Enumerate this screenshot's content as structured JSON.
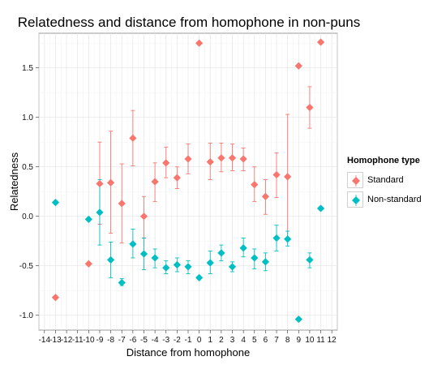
{
  "chart_data": {
    "type": "scatter",
    "title": "Relatedness and distance from homophone in non-puns",
    "xlabel": "Distance from homophone",
    "ylabel": "Relatedness",
    "xlim": [
      -14,
      12
    ],
    "ylim": [
      -1.15,
      1.85
    ],
    "x_ticks": [
      -14,
      -13,
      -12,
      -11,
      -10,
      -9,
      -8,
      -7,
      -6,
      -5,
      -4,
      -3,
      -2,
      -1,
      0,
      1,
      2,
      3,
      4,
      5,
      6,
      7,
      8,
      9,
      10,
      11,
      12
    ],
    "y_ticks": [
      -1.0,
      -0.5,
      0.0,
      0.5,
      1.0,
      1.5
    ],
    "y_tick_labels": [
      "-1.0",
      "-0.5",
      "0.0",
      "0.5",
      "1.0",
      "1.5"
    ],
    "grid": true,
    "legend_title": "Homophone type",
    "legend_position": "right",
    "series": [
      {
        "name": "Standard",
        "color": "#F8766D",
        "points": [
          {
            "x": -13,
            "y": -0.82
          },
          {
            "x": -10,
            "y": -0.48
          },
          {
            "x": -9,
            "y": 0.33,
            "lo": -0.08,
            "hi": 0.75
          },
          {
            "x": -8,
            "y": 0.34,
            "lo": -0.17,
            "hi": 0.86
          },
          {
            "x": -7,
            "y": 0.13,
            "lo": -0.27,
            "hi": 0.53
          },
          {
            "x": -6,
            "y": 0.79,
            "lo": 0.51,
            "hi": 1.07
          },
          {
            "x": -5,
            "y": 0.0,
            "lo": -0.22,
            "hi": 0.2
          },
          {
            "x": -4,
            "y": 0.35,
            "lo": 0.15,
            "hi": 0.54
          },
          {
            "x": -3,
            "y": 0.54,
            "lo": 0.39,
            "hi": 0.7
          },
          {
            "x": -2,
            "y": 0.39,
            "lo": 0.28,
            "hi": 0.5
          },
          {
            "x": -1,
            "y": 0.58,
            "lo": 0.43,
            "hi": 0.73
          },
          {
            "x": 0,
            "y": 1.75
          },
          {
            "x": 1,
            "y": 0.55,
            "lo": 0.37,
            "hi": 0.74
          },
          {
            "x": 2,
            "y": 0.59,
            "lo": 0.45,
            "hi": 0.74
          },
          {
            "x": 3,
            "y": 0.59,
            "lo": 0.46,
            "hi": 0.73
          },
          {
            "x": 4,
            "y": 0.58,
            "lo": 0.46,
            "hi": 0.69
          },
          {
            "x": 5,
            "y": 0.32,
            "lo": 0.15,
            "hi": 0.5
          },
          {
            "x": 6,
            "y": 0.2,
            "lo": 0.02,
            "hi": 0.37
          },
          {
            "x": 7,
            "y": 0.42,
            "lo": 0.19,
            "hi": 0.64
          },
          {
            "x": 8,
            "y": 0.4,
            "lo": -0.22,
            "hi": 1.03
          },
          {
            "x": 9,
            "y": 1.52
          },
          {
            "x": 10,
            "y": 1.1,
            "lo": 0.89,
            "hi": 1.31
          },
          {
            "x": 11,
            "y": 1.76
          }
        ]
      },
      {
        "name": "Non-standard",
        "color": "#00BFC4",
        "points": [
          {
            "x": -13,
            "y": 0.14
          },
          {
            "x": -10,
            "y": -0.03
          },
          {
            "x": -9,
            "y": 0.04,
            "lo": -0.29,
            "hi": 0.37
          },
          {
            "x": -8,
            "y": -0.44,
            "lo": -0.62,
            "hi": -0.26
          },
          {
            "x": -7,
            "y": -0.67,
            "lo": -0.7,
            "hi": -0.63
          },
          {
            "x": -6,
            "y": -0.28,
            "lo": -0.42,
            "hi": -0.13
          },
          {
            "x": -5,
            "y": -0.38,
            "lo": -0.54,
            "hi": -0.22
          },
          {
            "x": -4,
            "y": -0.42,
            "lo": -0.52,
            "hi": -0.33
          },
          {
            "x": -3,
            "y": -0.52,
            "lo": -0.58,
            "hi": -0.45
          },
          {
            "x": -2,
            "y": -0.49,
            "lo": -0.56,
            "hi": -0.42
          },
          {
            "x": -1,
            "y": -0.51,
            "lo": -0.58,
            "hi": -0.45
          },
          {
            "x": 0,
            "y": -0.62
          },
          {
            "x": 1,
            "y": -0.47,
            "lo": -0.58,
            "hi": -0.35
          },
          {
            "x": 2,
            "y": -0.37,
            "lo": -0.45,
            "hi": -0.29
          },
          {
            "x": 3,
            "y": -0.51,
            "lo": -0.56,
            "hi": -0.46
          },
          {
            "x": 4,
            "y": -0.32,
            "lo": -0.41,
            "hi": -0.22
          },
          {
            "x": 5,
            "y": -0.42,
            "lo": -0.53,
            "hi": -0.33
          },
          {
            "x": 6,
            "y": -0.46,
            "lo": -0.55,
            "hi": -0.37
          },
          {
            "x": 7,
            "y": -0.22,
            "lo": -0.35,
            "hi": -0.09
          },
          {
            "x": 8,
            "y": -0.23,
            "lo": -0.3,
            "hi": -0.15
          },
          {
            "x": 9,
            "y": -1.04
          },
          {
            "x": 10,
            "y": -0.44,
            "lo": -0.52,
            "hi": -0.37
          },
          {
            "x": 11,
            "y": 0.08
          }
        ]
      }
    ]
  }
}
